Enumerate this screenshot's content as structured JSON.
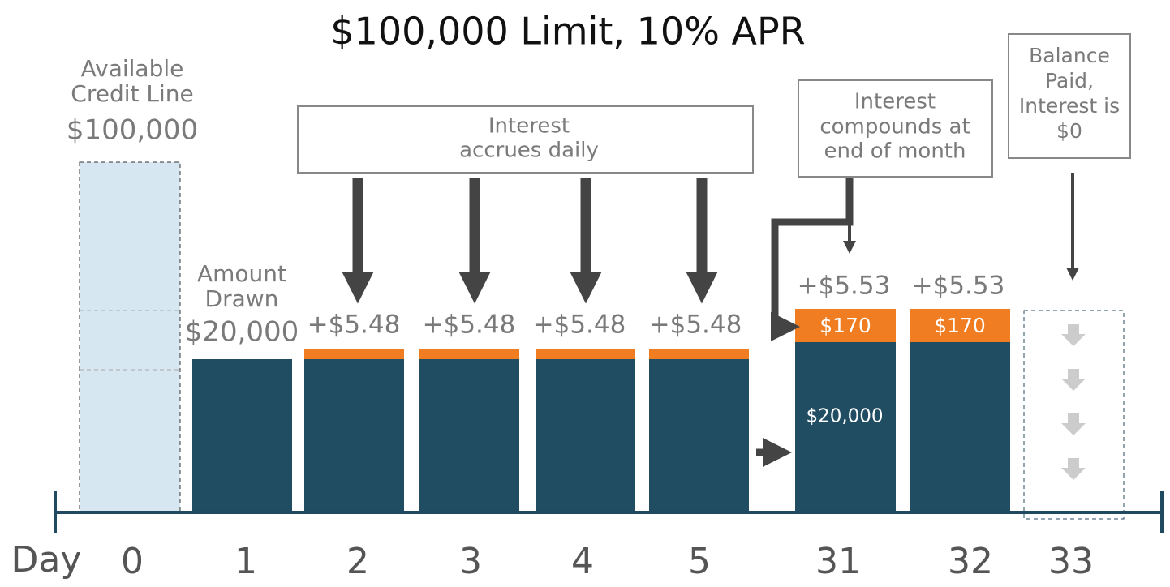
{
  "title": "$100,000 Limit, 10% APR",
  "axis_label": "Day",
  "days": [
    "0",
    "1",
    "2",
    "3",
    "4",
    "5",
    "31",
    "32",
    "33"
  ],
  "credit_line": {
    "label": [
      "Available",
      "Credit Line"
    ],
    "amount": "$100,000"
  },
  "drawn": {
    "label": [
      "Amount",
      "Drawn"
    ],
    "amount": "$20,000"
  },
  "daily_interest": [
    "+$5.48",
    "+$5.48",
    "+$5.48",
    "+$5.48"
  ],
  "callouts": [
    {
      "lines": [
        "Interest",
        "accrues daily"
      ]
    },
    {
      "lines": [
        "Interest",
        "compounds at",
        "end of month"
      ]
    },
    {
      "lines": [
        "Balance",
        "Paid,",
        "Interest is",
        "$0"
      ]
    }
  ],
  "month_interest": [
    "+$5.53",
    "+$5.53"
  ],
  "compounded": [
    "$170",
    "$170"
  ],
  "principal": "$20,000"
}
